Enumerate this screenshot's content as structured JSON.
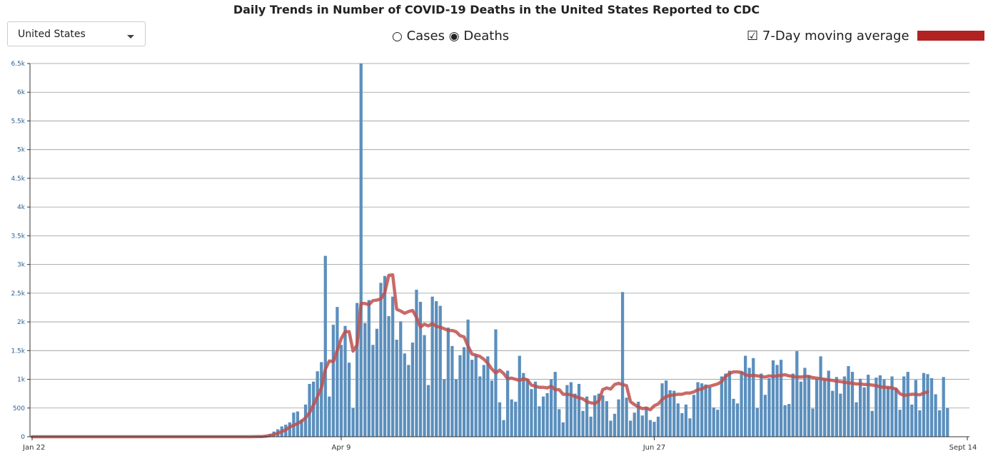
{
  "title": "Daily Trends in Number of COVID-19 Deaths in the United States Reported to CDC",
  "region_select": {
    "value": "United States"
  },
  "metric_toggle": {
    "options": [
      {
        "label": "Cases",
        "selected": false
      },
      {
        "label": "Deaths",
        "selected": true
      }
    ]
  },
  "moving_average_toggle": {
    "label": "7-Day moving average",
    "checked": true,
    "color": "#b22222"
  },
  "colors": {
    "bar": "#5b8fbd",
    "line": "#c0504d",
    "grid": "#999999",
    "axis": "#333333"
  },
  "chart_data": {
    "type": "bar",
    "title": "",
    "xlabel": "",
    "ylabel": "",
    "ylim": [
      0,
      6500
    ],
    "y_ticks": [
      {
        "value": 0,
        "label": "0"
      },
      {
        "value": 500,
        "label": "500"
      },
      {
        "value": 1000,
        "label": "1k"
      },
      {
        "value": 1500,
        "label": "1.5k"
      },
      {
        "value": 2000,
        "label": "2k"
      },
      {
        "value": 2500,
        "label": "2.5k"
      },
      {
        "value": 3000,
        "label": "3k"
      },
      {
        "value": 3500,
        "label": "3.5k"
      },
      {
        "value": 4000,
        "label": "4k"
      },
      {
        "value": 4500,
        "label": "4.5k"
      },
      {
        "value": 5000,
        "label": "5k"
      },
      {
        "value": 5500,
        "label": "5.5k"
      },
      {
        "value": 6000,
        "label": "6k"
      },
      {
        "value": 6500,
        "label": "6.5k"
      }
    ],
    "x_start": "Jan 22",
    "x_ticks": [
      {
        "day": 0,
        "label": "Jan 22"
      },
      {
        "day": 78,
        "label": "Apr 9"
      },
      {
        "day": 157,
        "label": "Jun 27"
      },
      {
        "day": 236,
        "label": "Sept 14"
      }
    ],
    "grid": true,
    "series": [
      {
        "type": "bar",
        "values": [
          0,
          0,
          0,
          0,
          0,
          0,
          0,
          0,
          0,
          0,
          0,
          0,
          0,
          0,
          0,
          0,
          0,
          0,
          0,
          0,
          0,
          0,
          0,
          0,
          0,
          0,
          0,
          0,
          0,
          0,
          0,
          0,
          0,
          0,
          0,
          0,
          0,
          0,
          0,
          0,
          0,
          0,
          0,
          0,
          0,
          0,
          0,
          0,
          0,
          0,
          0,
          0,
          0,
          0,
          0,
          0,
          5,
          10,
          15,
          30,
          50,
          90,
          130,
          180,
          210,
          250,
          420,
          440,
          300,
          560,
          920,
          960,
          1140,
          1300,
          3150,
          700,
          1950,
          2260,
          1600,
          1930,
          1290,
          500,
          2330,
          6500,
          1980,
          2380,
          1600,
          1880,
          2680,
          2800,
          2100,
          2440,
          1690,
          2010,
          1450,
          1250,
          1640,
          2560,
          2350,
          1770,
          900,
          2440,
          2360,
          2280,
          1000,
          1900,
          1580,
          1000,
          1420,
          1560,
          2040,
          1340,
          1420,
          1050,
          1250,
          1400,
          980,
          1870,
          600,
          290,
          1150,
          650,
          610,
          1410,
          1110,
          1010,
          830,
          960,
          530,
          700,
          760,
          1000,
          1130,
          480,
          250,
          900,
          950,
          750,
          920,
          450,
          700,
          350,
          720,
          750,
          720,
          620,
          280,
          400,
          650,
          2520,
          680,
          280,
          420,
          610,
          370,
          520,
          290,
          260,
          350,
          930,
          980,
          810,
          800,
          580,
          410,
          560,
          320,
          730,
          950,
          930,
          910,
          860,
          510,
          470,
          1050,
          1100,
          1150,
          660,
          580,
          1140,
          1410,
          1200,
          1370,
          500,
          1100,
          730,
          1020,
          1330,
          1250,
          1340,
          550,
          570,
          1100,
          1490,
          960,
          1200,
          1070,
          490,
          1010,
          1400,
          1010,
          1150,
          800,
          1040,
          750,
          1050,
          1230,
          1130,
          600,
          1010,
          860,
          1080,
          450,
          1030,
          1070,
          1000,
          870,
          1050,
          850,
          470,
          1050,
          1130,
          560,
          990,
          460,
          1110,
          1090,
          1020,
          740,
          460,
          1040,
          500
        ]
      },
      {
        "name": "7-Day moving average",
        "type": "line",
        "values": [
          0,
          0,
          0,
          0,
          0,
          0,
          0,
          0,
          0,
          0,
          0,
          0,
          0,
          0,
          0,
          0,
          0,
          0,
          0,
          0,
          0,
          0,
          0,
          0,
          0,
          0,
          0,
          0,
          0,
          0,
          0,
          0,
          0,
          0,
          0,
          0,
          0,
          0,
          0,
          0,
          0,
          0,
          0,
          0,
          0,
          0,
          0,
          0,
          0,
          0,
          0,
          0,
          0,
          0,
          0,
          0,
          1,
          2,
          4,
          10,
          20,
          40,
          60,
          90,
          120,
          170,
          200,
          230,
          270,
          330,
          420,
          550,
          700,
          850,
          1180,
          1320,
          1310,
          1500,
          1710,
          1830,
          1830,
          1490,
          1600,
          2320,
          2320,
          2300,
          2370,
          2380,
          2400,
          2510,
          2810,
          2820,
          2220,
          2190,
          2150,
          2180,
          2200,
          2080,
          1910,
          1960,
          1930,
          1970,
          1920,
          1910,
          1880,
          1850,
          1850,
          1830,
          1760,
          1740,
          1580,
          1440,
          1420,
          1400,
          1350,
          1280,
          1180,
          1110,
          1160,
          1100,
          1010,
          1020,
          1000,
          980,
          1010,
          990,
          900,
          880,
          860,
          860,
          850,
          880,
          820,
          820,
          740,
          740,
          730,
          700,
          680,
          660,
          610,
          590,
          580,
          620,
          820,
          850,
          830,
          910,
          930,
          910,
          890,
          610,
          560,
          520,
          490,
          500,
          470,
          540,
          570,
          650,
          700,
          720,
          730,
          740,
          740,
          760,
          760,
          780,
          820,
          830,
          870,
          880,
          900,
          920,
          960,
          1050,
          1100,
          1130,
          1130,
          1120,
          1080,
          1060,
          1070,
          1060,
          1050,
          1040,
          1060,
          1050,
          1060,
          1070,
          1080,
          1060,
          1050,
          1040,
          1040,
          1050,
          1050,
          1030,
          1020,
          1010,
          1000,
          990,
          980,
          970,
          960,
          950,
          940,
          930,
          920,
          920,
          910,
          910,
          900,
          890,
          870,
          860,
          860,
          850,
          830,
          750,
          720,
          730,
          740,
          740,
          730,
          760,
          780
        ]
      }
    ]
  }
}
